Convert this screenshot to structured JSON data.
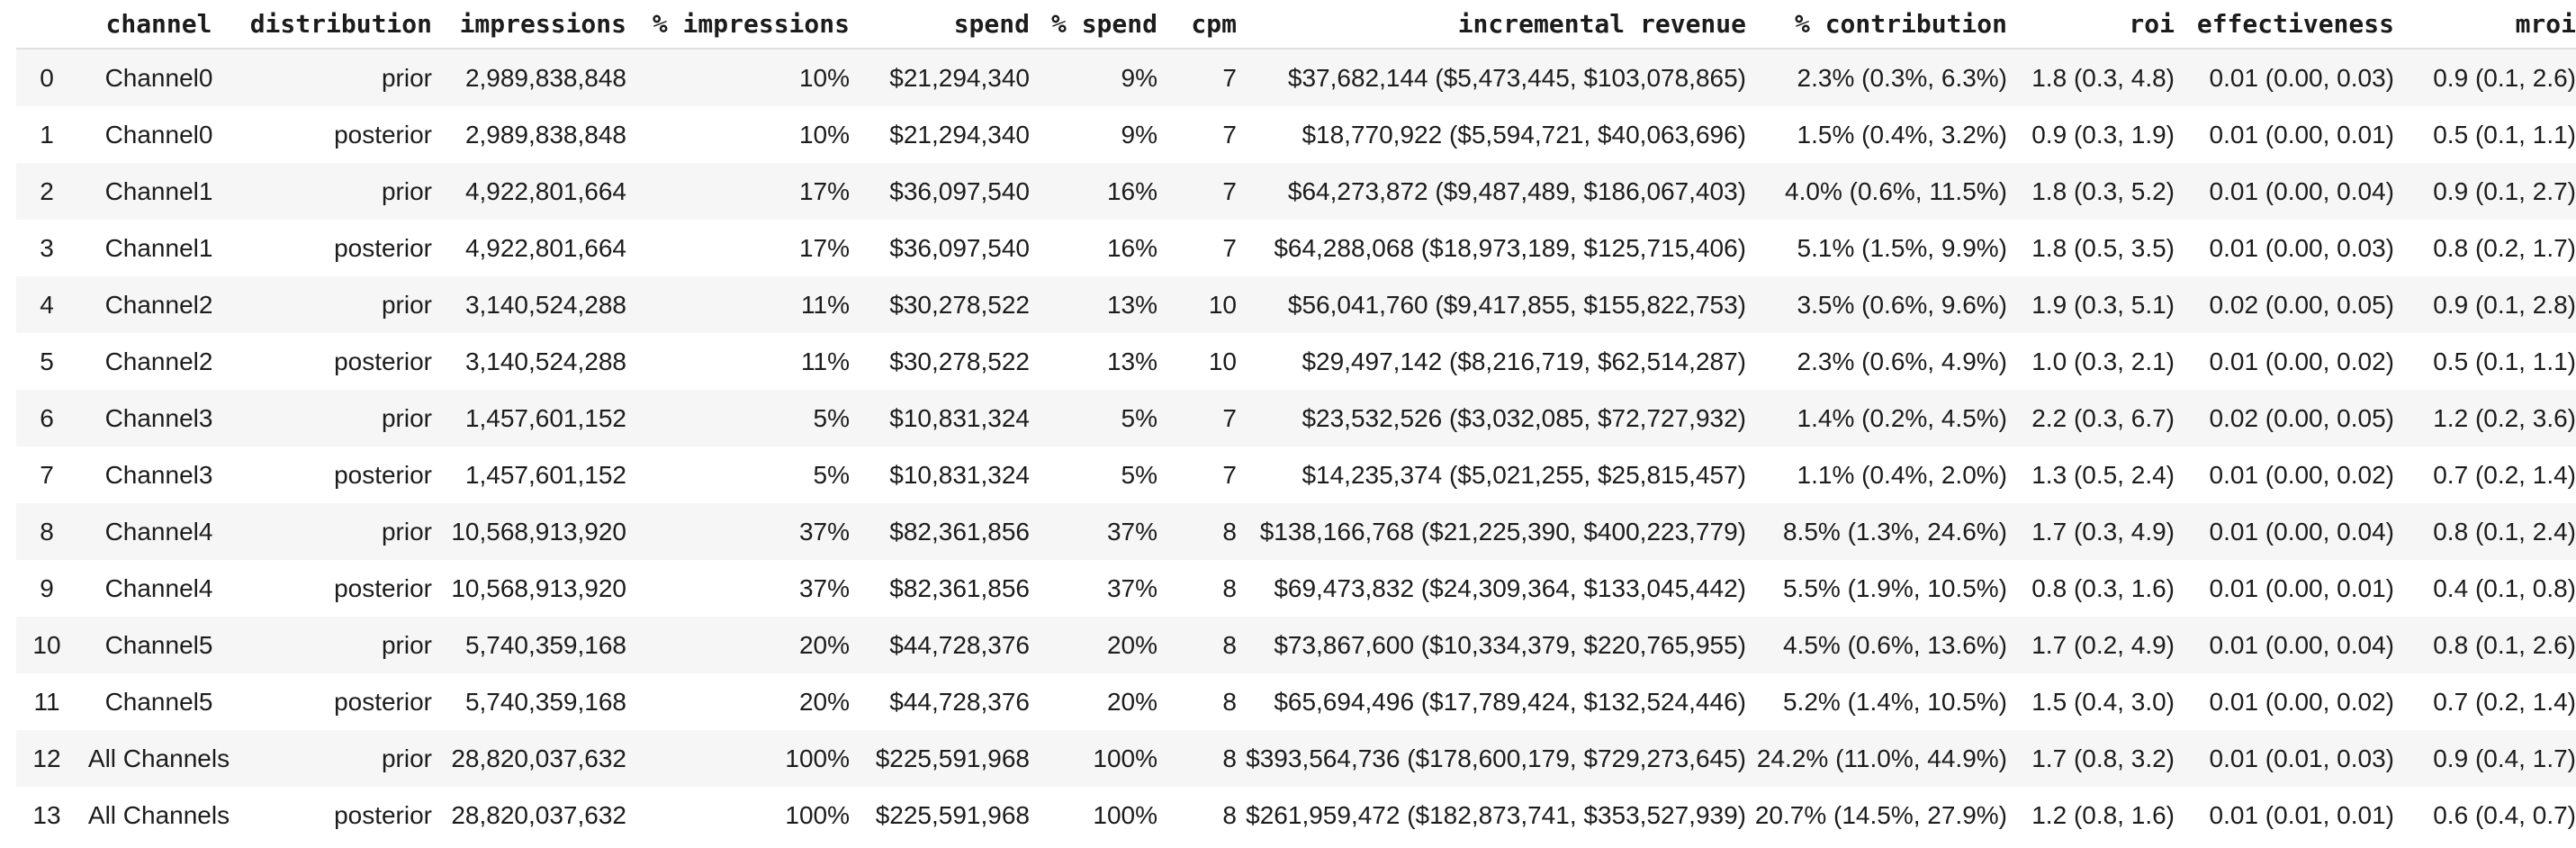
{
  "colors": {
    "row_alt_background": "#f6f6f6",
    "header_divider": "#e0e0e0",
    "text": "#1c1c1c"
  },
  "chart_data": {
    "type": "table",
    "columns": [
      "",
      "channel",
      "distribution",
      "impressions",
      "% impressions",
      "spend",
      "% spend",
      "cpm",
      "incremental revenue",
      "% contribution",
      "roi",
      "effectiveness",
      "mroi"
    ],
    "rows": [
      [
        "0",
        "Channel0",
        "prior",
        "2,989,838,848",
        "10%",
        "$21,294,340",
        "9%",
        "7",
        "$37,682,144 ($5,473,445, $103,078,865)",
        "2.3% (0.3%, 6.3%)",
        "1.8 (0.3, 4.8)",
        "0.01 (0.00, 0.03)",
        "0.9 (0.1, 2.6)"
      ],
      [
        "1",
        "Channel0",
        "posterior",
        "2,989,838,848",
        "10%",
        "$21,294,340",
        "9%",
        "7",
        "$18,770,922 ($5,594,721, $40,063,696)",
        "1.5% (0.4%, 3.2%)",
        "0.9 (0.3, 1.9)",
        "0.01 (0.00, 0.01)",
        "0.5 (0.1, 1.1)"
      ],
      [
        "2",
        "Channel1",
        "prior",
        "4,922,801,664",
        "17%",
        "$36,097,540",
        "16%",
        "7",
        "$64,273,872 ($9,487,489, $186,067,403)",
        "4.0% (0.6%, 11.5%)",
        "1.8 (0.3, 5.2)",
        "0.01 (0.00, 0.04)",
        "0.9 (0.1, 2.7)"
      ],
      [
        "3",
        "Channel1",
        "posterior",
        "4,922,801,664",
        "17%",
        "$36,097,540",
        "16%",
        "7",
        "$64,288,068 ($18,973,189, $125,715,406)",
        "5.1% (1.5%, 9.9%)",
        "1.8 (0.5, 3.5)",
        "0.01 (0.00, 0.03)",
        "0.8 (0.2, 1.7)"
      ],
      [
        "4",
        "Channel2",
        "prior",
        "3,140,524,288",
        "11%",
        "$30,278,522",
        "13%",
        "10",
        "$56,041,760 ($9,417,855, $155,822,753)",
        "3.5% (0.6%, 9.6%)",
        "1.9 (0.3, 5.1)",
        "0.02 (0.00, 0.05)",
        "0.9 (0.1, 2.8)"
      ],
      [
        "5",
        "Channel2",
        "posterior",
        "3,140,524,288",
        "11%",
        "$30,278,522",
        "13%",
        "10",
        "$29,497,142 ($8,216,719, $62,514,287)",
        "2.3% (0.6%, 4.9%)",
        "1.0 (0.3, 2.1)",
        "0.01 (0.00, 0.02)",
        "0.5 (0.1, 1.1)"
      ],
      [
        "6",
        "Channel3",
        "prior",
        "1,457,601,152",
        "5%",
        "$10,831,324",
        "5%",
        "7",
        "$23,532,526 ($3,032,085, $72,727,932)",
        "1.4% (0.2%, 4.5%)",
        "2.2 (0.3, 6.7)",
        "0.02 (0.00, 0.05)",
        "1.2 (0.2, 3.6)"
      ],
      [
        "7",
        "Channel3",
        "posterior",
        "1,457,601,152",
        "5%",
        "$10,831,324",
        "5%",
        "7",
        "$14,235,374 ($5,021,255, $25,815,457)",
        "1.1% (0.4%, 2.0%)",
        "1.3 (0.5, 2.4)",
        "0.01 (0.00, 0.02)",
        "0.7 (0.2, 1.4)"
      ],
      [
        "8",
        "Channel4",
        "prior",
        "10,568,913,920",
        "37%",
        "$82,361,856",
        "37%",
        "8",
        "$138,166,768 ($21,225,390, $400,223,779)",
        "8.5% (1.3%, 24.6%)",
        "1.7 (0.3, 4.9)",
        "0.01 (0.00, 0.04)",
        "0.8 (0.1, 2.4)"
      ],
      [
        "9",
        "Channel4",
        "posterior",
        "10,568,913,920",
        "37%",
        "$82,361,856",
        "37%",
        "8",
        "$69,473,832 ($24,309,364, $133,045,442)",
        "5.5% (1.9%, 10.5%)",
        "0.8 (0.3, 1.6)",
        "0.01 (0.00, 0.01)",
        "0.4 (0.1, 0.8)"
      ],
      [
        "10",
        "Channel5",
        "prior",
        "5,740,359,168",
        "20%",
        "$44,728,376",
        "20%",
        "8",
        "$73,867,600 ($10,334,379, $220,765,955)",
        "4.5% (0.6%, 13.6%)",
        "1.7 (0.2, 4.9)",
        "0.01 (0.00, 0.04)",
        "0.8 (0.1, 2.6)"
      ],
      [
        "11",
        "Channel5",
        "posterior",
        "5,740,359,168",
        "20%",
        "$44,728,376",
        "20%",
        "8",
        "$65,694,496 ($17,789,424, $132,524,446)",
        "5.2% (1.4%, 10.5%)",
        "1.5 (0.4, 3.0)",
        "0.01 (0.00, 0.02)",
        "0.7 (0.2, 1.4)"
      ],
      [
        "12",
        "All Channels",
        "prior",
        "28,820,037,632",
        "100%",
        "$225,591,968",
        "100%",
        "8",
        "$393,564,736 ($178,600,179, $729,273,645)",
        "24.2% (11.0%, 44.9%)",
        "1.7 (0.8, 3.2)",
        "0.01 (0.01, 0.03)",
        "0.9 (0.4, 1.7)"
      ],
      [
        "13",
        "All Channels",
        "posterior",
        "28,820,037,632",
        "100%",
        "$225,591,968",
        "100%",
        "8",
        "$261,959,472 ($182,873,741, $353,527,939)",
        "20.7% (14.5%, 27.9%)",
        "1.2 (0.8, 1.6)",
        "0.01 (0.01, 0.01)",
        "0.6 (0.4, 0.7)"
      ]
    ]
  }
}
